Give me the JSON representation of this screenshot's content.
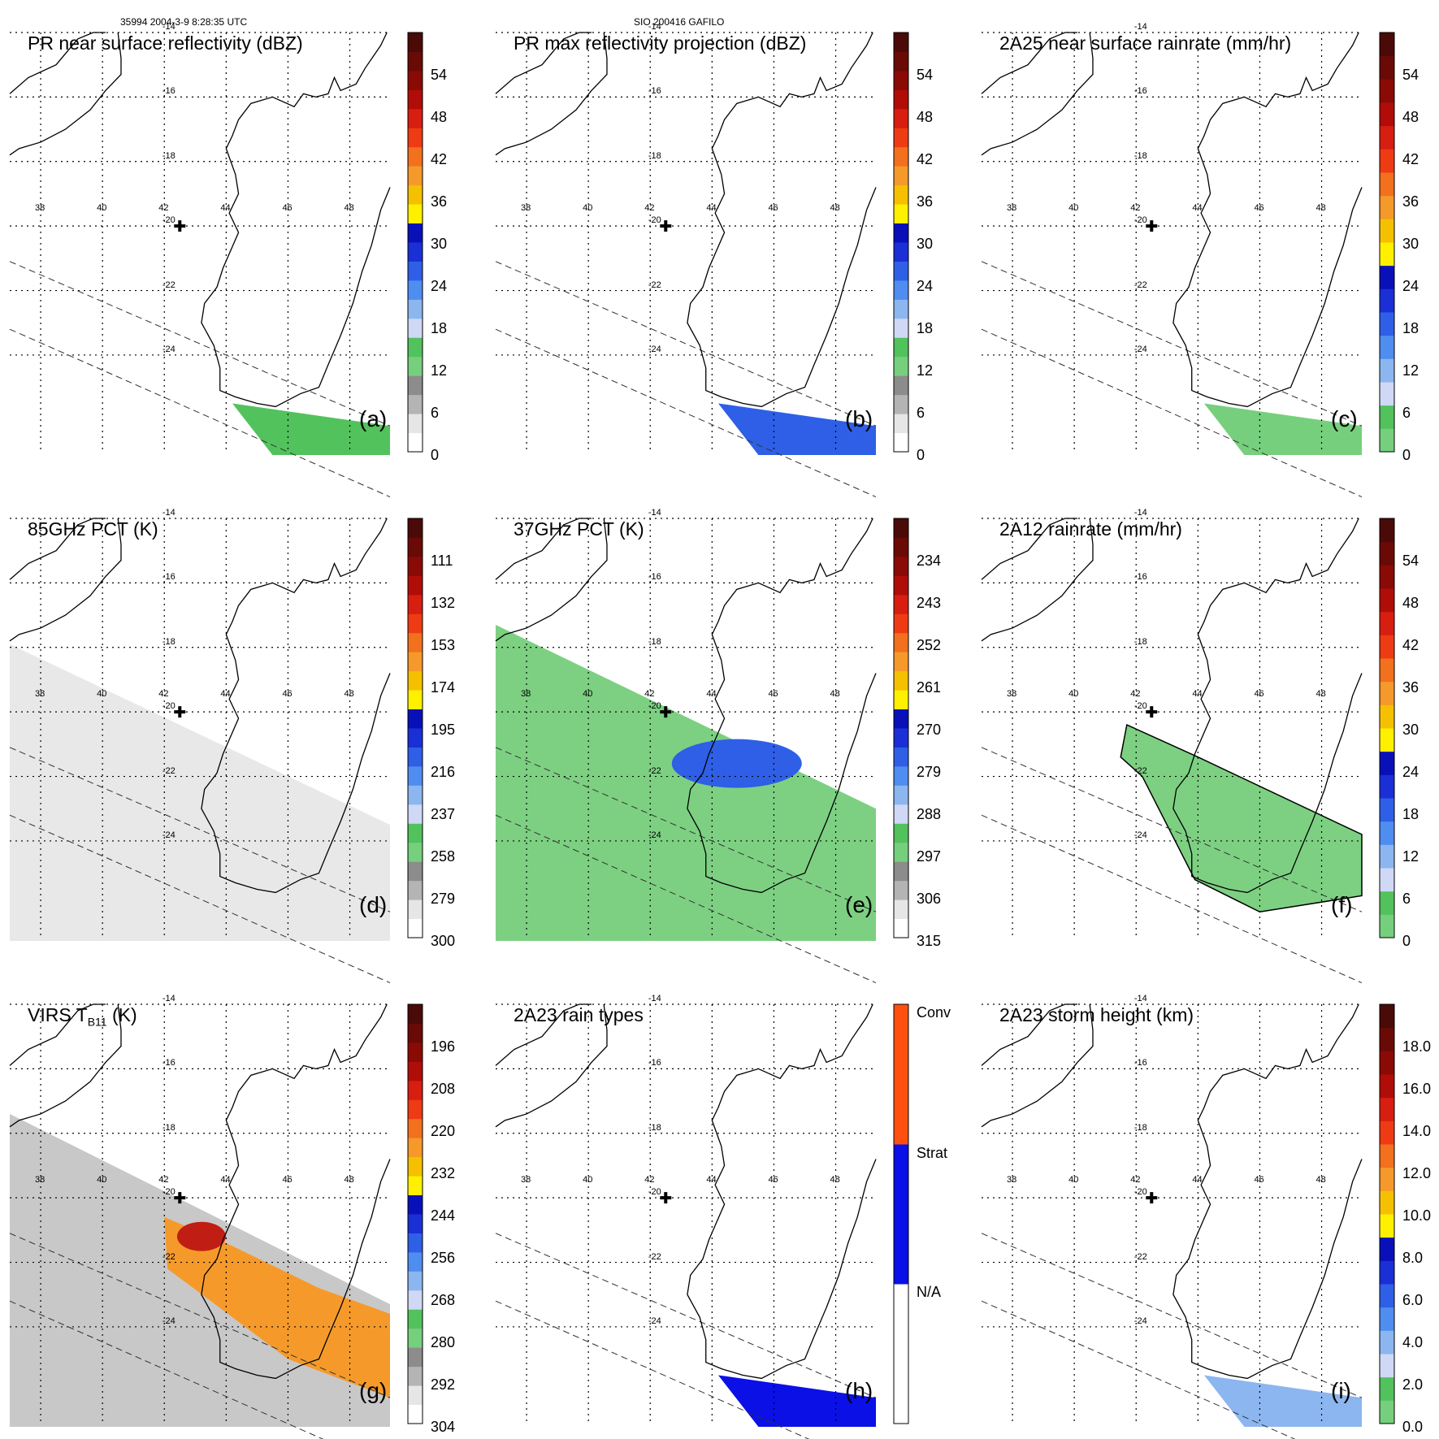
{
  "header": {
    "left": "35994 2004-3-9 8:28:35 UTC",
    "center": "SIO 200416 GAFILO"
  },
  "lat_labels": [
    "-14",
    "-16",
    "-18",
    "-20",
    "-22",
    "-24"
  ],
  "lon_labels": [
    "38",
    "40",
    "42",
    "44",
    "46",
    "48"
  ],
  "panels": [
    {
      "title": "PR near surface reflectivity (dBZ)",
      "label": "(a)",
      "scale": "dbz",
      "ticks": [
        "54",
        "48",
        "42",
        "36",
        "30",
        "24",
        "18",
        "12",
        "6",
        "0"
      ]
    },
    {
      "title": "PR max reflectivity projection (dBZ)",
      "label": "(b)",
      "scale": "dbz",
      "ticks": [
        "54",
        "48",
        "42",
        "36",
        "30",
        "24",
        "18",
        "12",
        "6",
        "0"
      ]
    },
    {
      "title": "2A25 near surface rainrate (mm/hr)",
      "label": "(c)",
      "scale": "rain",
      "ticks": [
        "54",
        "48",
        "42",
        "36",
        "30",
        "24",
        "18",
        "12",
        "6",
        "0"
      ]
    },
    {
      "title": "85GHz PCT (K)",
      "label": "(d)",
      "scale": "k85",
      "ticks": [
        "111",
        "132",
        "153",
        "174",
        "195",
        "216",
        "237",
        "258",
        "279",
        "300"
      ]
    },
    {
      "title": "37GHz PCT (K)",
      "label": "(e)",
      "scale": "k37",
      "ticks": [
        "234",
        "243",
        "252",
        "261",
        "270",
        "279",
        "288",
        "297",
        "306",
        "315"
      ]
    },
    {
      "title": "2A12 rainrate (mm/hr)",
      "label": "(f)",
      "scale": "rain",
      "ticks": [
        "54",
        "48",
        "42",
        "36",
        "30",
        "24",
        "18",
        "12",
        "6",
        "0"
      ]
    },
    {
      "title": "VIRS T",
      "title_sub": "B11",
      "title_tail": " (K)",
      "label": "(g)",
      "scale": "virs",
      "ticks": [
        "196",
        "208",
        "220",
        "232",
        "244",
        "256",
        "268",
        "280",
        "292",
        "304"
      ]
    },
    {
      "title": "2A23 rain types",
      "label": "(h)",
      "scale": "types",
      "ticks": [
        "Conv",
        "Strat",
        "N/A"
      ]
    },
    {
      "title": "2A23 storm height (km)",
      "label": "(i)",
      "scale": "height",
      "ticks": [
        "18.0",
        "16.0",
        "14.0",
        "12.0",
        "10.0",
        "8.0",
        "6.0",
        "4.0",
        "2.0",
        "0.0"
      ]
    }
  ],
  "colors": {
    "dbz_bands": [
      "#ffffff",
      "#e6e6e6",
      "#b4b4b4",
      "#8c8c8c",
      "#76cf7c",
      "#52c25c",
      "#cfd8f5",
      "#8cb6ef",
      "#4f8df0",
      "#2e5fe6",
      "#1a2fd6",
      "#0a10b8",
      "#fff000",
      "#f5c000",
      "#f59a2a",
      "#f2701e",
      "#ee3b14",
      "#d81e10",
      "#b00d08",
      "#8a0a06",
      "#6a0a06",
      "#4a0a08"
    ],
    "rain_bands": [
      "#76cf7c",
      "#52c25c",
      "#cfd8f5",
      "#8cb6ef",
      "#4f8df0",
      "#2e5fe6",
      "#1a2fd6",
      "#0a10b8",
      "#fff000",
      "#f5c000",
      "#f59a2a",
      "#f2701e",
      "#ee3b14",
      "#d81e10",
      "#b00d08",
      "#8a0a06",
      "#6a0a06",
      "#4a0a08"
    ],
    "types_bands": [
      "#ffffff",
      "#0a10e6",
      "#ff5010"
    ]
  }
}
